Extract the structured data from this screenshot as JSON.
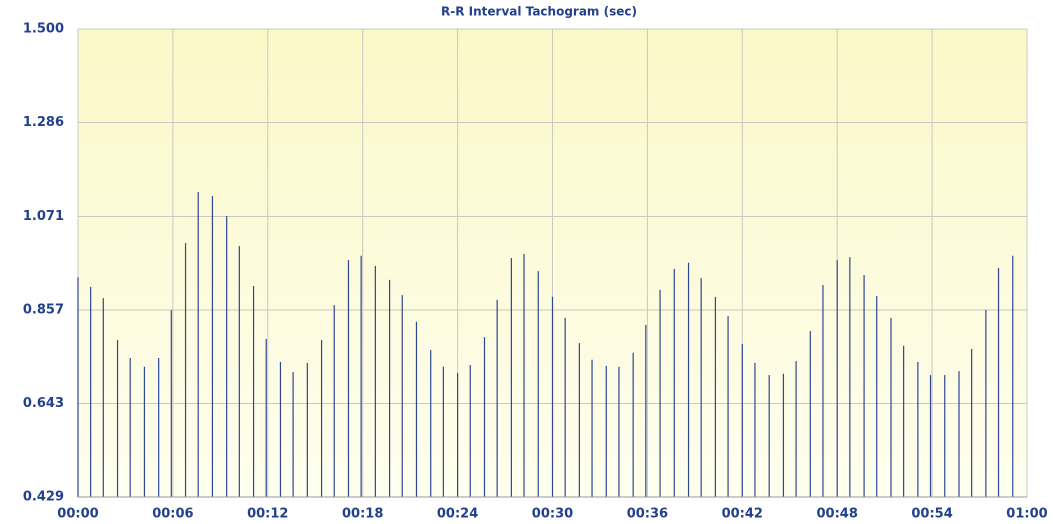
{
  "chart_data": {
    "type": "stem",
    "title": "R-R Interval Tachogram (sec)",
    "x": [
      0,
      0.8,
      1.6,
      2.5,
      3.3,
      4.2,
      5.1,
      5.9,
      6.8,
      7.6,
      8.5,
      9.4,
      10.2,
      11.1,
      11.9,
      12.8,
      13.6,
      14.5,
      15.4,
      16.2,
      17.1,
      17.9,
      18.8,
      19.7,
      20.5,
      21.4,
      22.3,
      23.1,
      24.0,
      24.8,
      25.7,
      26.5,
      27.4,
      28.2,
      29.1,
      30.0,
      30.8,
      31.7,
      32.5,
      33.4,
      34.2,
      35.1,
      35.9,
      36.8,
      37.7,
      38.6,
      39.4,
      40.3,
      41.1,
      42.0,
      42.8,
      43.7,
      44.6,
      45.4,
      46.3,
      47.1,
      48.0,
      48.8,
      49.7,
      50.5,
      51.4,
      52.2,
      53.1,
      53.9,
      54.8,
      55.7,
      56.5,
      57.4,
      58.2,
      59.1
    ],
    "values": [
      0.932,
      0.91,
      0.884,
      0.788,
      0.747,
      0.727,
      0.747,
      0.857,
      1.01,
      1.127,
      1.118,
      1.072,
      1.003,
      0.912,
      0.791,
      0.738,
      0.715,
      0.736,
      0.788,
      0.868,
      0.971,
      0.981,
      0.958,
      0.926,
      0.891,
      0.83,
      0.765,
      0.727,
      0.713,
      0.731,
      0.795,
      0.88,
      0.976,
      0.985,
      0.946,
      0.887,
      0.839,
      0.781,
      0.743,
      0.729,
      0.727,
      0.759,
      0.823,
      0.903,
      0.951,
      0.965,
      0.93,
      0.887,
      0.843,
      0.779,
      0.736,
      0.708,
      0.711,
      0.74,
      0.809,
      0.914,
      0.971,
      0.978,
      0.937,
      0.889,
      0.839,
      0.775,
      0.738,
      0.708,
      0.708,
      0.717,
      0.768,
      0.857,
      0.953,
      0.981
    ],
    "color": "#2f4596",
    "xlim": [
      0,
      60
    ],
    "xticks": [
      {
        "value": 0,
        "label": "00:00"
      },
      {
        "value": 6,
        "label": "00:06"
      },
      {
        "value": 12,
        "label": "00:12"
      },
      {
        "value": 18,
        "label": "00:18"
      },
      {
        "value": 24,
        "label": "00:24"
      },
      {
        "value": 30,
        "label": "00:30"
      },
      {
        "value": 36,
        "label": "00:36"
      },
      {
        "value": 42,
        "label": "00:42"
      },
      {
        "value": 48,
        "label": "00:48"
      },
      {
        "value": 54,
        "label": "00:54"
      },
      {
        "value": 60,
        "label": "01:00"
      }
    ],
    "ylim": [
      0.429,
      1.5
    ],
    "yticks": [
      0.429,
      0.643,
      0.857,
      1.071,
      1.286,
      {
        "value": 1.5,
        "label": "1.500"
      }
    ],
    "grid": true
  }
}
